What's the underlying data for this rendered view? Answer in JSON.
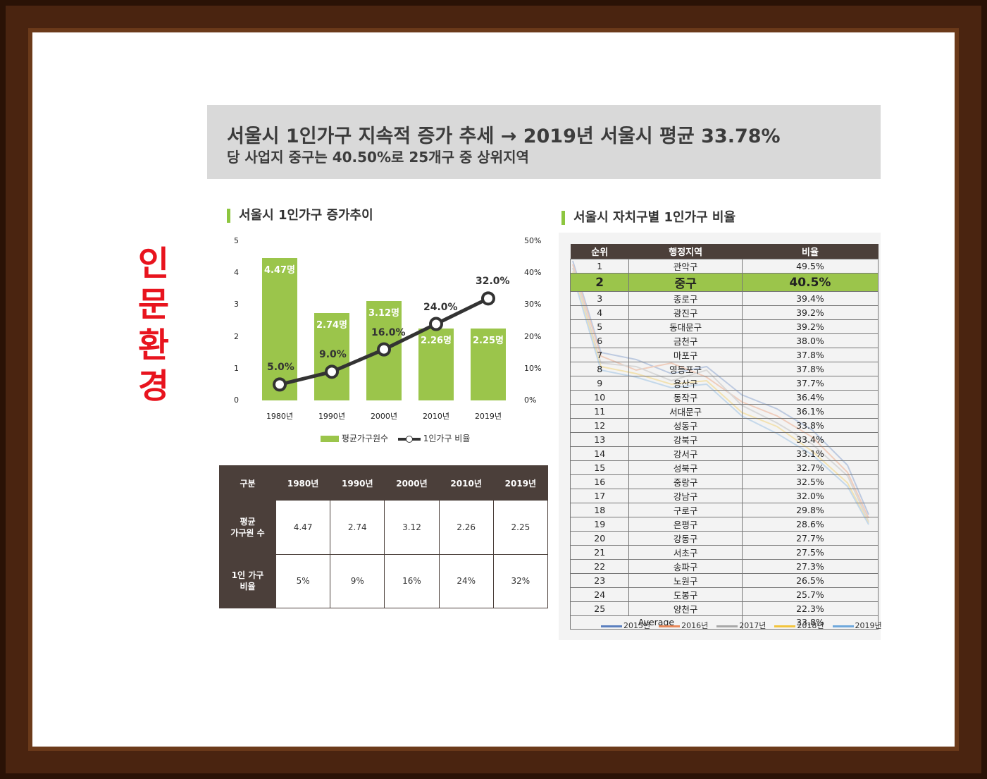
{
  "side_title": "인문환경",
  "header": {
    "line1": "서울시 1인가구 지속적 증가 추세 → 2019년 서울시 평균 33.78%",
    "line2": "당 사업지 중구는 40.50%로 25개구 중 상위지역"
  },
  "left_section_title": "서울시 1인가구 증가추이",
  "right_section_title": "서울시 자치구별 1인가구 비율",
  "colors": {
    "bar": "#9bc54b",
    "line": "#333333",
    "table_header": "#4b3f3a",
    "highlight": "#9bc54b"
  },
  "chart_data": [
    {
      "type": "bar",
      "categories": [
        "1980년",
        "1990년",
        "2000년",
        "2010년",
        "2019년"
      ],
      "series": [
        {
          "name": "평균가구원수",
          "type": "bar",
          "axis": "left",
          "values": [
            4.47,
            2.74,
            3.12,
            2.26,
            2.25
          ],
          "labels": [
            "4.47명",
            "2.74명",
            "3.12명",
            "2.26명",
            "2.25명"
          ]
        },
        {
          "name": "1인가구 비율",
          "type": "line",
          "axis": "right",
          "values": [
            5.0,
            9.0,
            16.0,
            24.0,
            32.0
          ],
          "labels": [
            "5.0%",
            "9.0%",
            "16.0%",
            "24.0%",
            "32.0%"
          ]
        }
      ],
      "left_ticks": [
        "0",
        "1",
        "2",
        "3",
        "4",
        "5"
      ],
      "right_ticks": [
        "0%",
        "10%",
        "20%",
        "30%",
        "40%",
        "50%"
      ],
      "ylim_left": [
        0,
        5
      ],
      "ylim_right": [
        0,
        50
      ],
      "legend_position": "bottom"
    },
    {
      "type": "table",
      "columns": [
        "구분",
        "1980년",
        "1990년",
        "2000년",
        "2010년",
        "2019년"
      ],
      "rows": [
        {
          "label_lines": [
            "평균",
            "가구원 수"
          ],
          "values": [
            "4.47",
            "2.74",
            "3.12",
            "2.26",
            "2.25"
          ]
        },
        {
          "label_lines": [
            "1인 가구",
            "비율"
          ],
          "values": [
            "5%",
            "9%",
            "16%",
            "24%",
            "32%"
          ]
        }
      ]
    },
    {
      "type": "table",
      "columns": [
        "순위",
        "행정지역",
        "비율"
      ],
      "rows": [
        [
          "1",
          "관악구",
          "49.5%"
        ],
        [
          "2",
          "중구",
          "40.5%"
        ],
        [
          "3",
          "종로구",
          "39.4%"
        ],
        [
          "4",
          "광진구",
          "39.2%"
        ],
        [
          "5",
          "동대문구",
          "39.2%"
        ],
        [
          "6",
          "금천구",
          "38.0%"
        ],
        [
          "7",
          "마포구",
          "37.8%"
        ],
        [
          "8",
          "영등포구",
          "37.8%"
        ],
        [
          "9",
          "용산구",
          "37.7%"
        ],
        [
          "10",
          "동작구",
          "36.4%"
        ],
        [
          "11",
          "서대문구",
          "36.1%"
        ],
        [
          "12",
          "성동구",
          "33.8%"
        ],
        [
          "13",
          "강북구",
          "33.4%"
        ],
        [
          "14",
          "강서구",
          "33.1%"
        ],
        [
          "15",
          "성북구",
          "32.7%"
        ],
        [
          "16",
          "중랑구",
          "32.5%"
        ],
        [
          "17",
          "강남구",
          "32.0%"
        ],
        [
          "18",
          "구로구",
          "29.8%"
        ],
        [
          "19",
          "은평구",
          "28.6%"
        ],
        [
          "20",
          "강동구",
          "27.7%"
        ],
        [
          "21",
          "서초구",
          "27.5%"
        ],
        [
          "22",
          "송파구",
          "27.3%"
        ],
        [
          "23",
          "노원구",
          "26.5%"
        ],
        [
          "24",
          "도봉구",
          "25.7%"
        ],
        [
          "25",
          "양천구",
          "22.3%"
        ]
      ],
      "average": {
        "label": "Average",
        "value": "33.8%"
      },
      "highlight_row": 1,
      "background_legend": [
        {
          "name": "2015년",
          "color": "#5b7fbf"
        },
        {
          "name": "2016년",
          "color": "#e8895a"
        },
        {
          "name": "2017년",
          "color": "#a8a8a8"
        },
        {
          "name": "2018년",
          "color": "#f2c43c"
        },
        {
          "name": "2019년",
          "color": "#6fa8dc"
        }
      ]
    }
  ]
}
